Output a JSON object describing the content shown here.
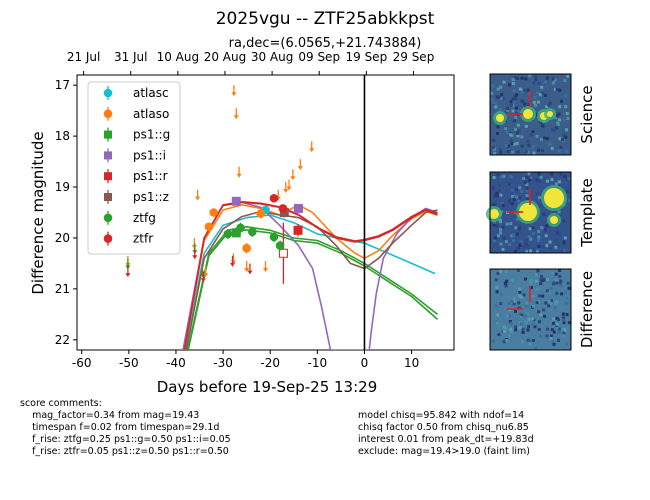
{
  "title": "2025vgu -- ZTF25abkkpst",
  "subtitle": "ra,dec=(6.0565,+21.743884)",
  "chart_data": {
    "type": "scatter",
    "xlabel": "Days before 19-Sep-25 13:29",
    "ylabel": "Difference magnitude",
    "xlim": [
      -61,
      19
    ],
    "ylim": [
      22.2,
      16.8
    ],
    "y_inverted": true,
    "xticks": [
      -60,
      -50,
      -40,
      -30,
      -20,
      -10,
      0,
      10
    ],
    "yticks": [
      17,
      18,
      19,
      20,
      21,
      22
    ],
    "top_ticks": [
      {
        "x": -59.6,
        "label": "21 Jul"
      },
      {
        "x": -49.6,
        "label": "31 Jul"
      },
      {
        "x": -39.6,
        "label": "10 Aug"
      },
      {
        "x": -29.6,
        "label": "20 Aug"
      },
      {
        "x": -19.6,
        "label": "30 Aug"
      },
      {
        "x": -9.6,
        "label": "09 Sep"
      },
      {
        "x": 0.4,
        "label": "19 Sep"
      },
      {
        "x": 10.4,
        "label": "29 Sep"
      }
    ],
    "vline_x": 0,
    "legend_position": "upper-left",
    "series": [
      {
        "name": "atlasc",
        "color": "#17becf",
        "marker": "circle",
        "points": [
          {
            "x": -21,
            "y": 19.45,
            "err": 0.08
          }
        ]
      },
      {
        "name": "atlaso",
        "color": "#ff7f0e",
        "marker": "circle",
        "points": [
          {
            "x": -32,
            "y": 19.5,
            "err": 0.08
          },
          {
            "x": -33,
            "y": 19.78,
            "err": 0.08
          },
          {
            "x": -25,
            "y": 20.2,
            "err": 0.1
          },
          {
            "x": -22,
            "y": 19.52,
            "err": 0.1
          }
        ],
        "limits": [
          {
            "x": -27.7,
            "y": 17.1
          },
          {
            "x": -27.2,
            "y": 17.55
          },
          {
            "x": -26.6,
            "y": 18.7
          },
          {
            "x": -35.4,
            "y": 19.15
          },
          {
            "x": -18.3,
            "y": 19.15
          },
          {
            "x": -16.7,
            "y": 19.0
          },
          {
            "x": -16.0,
            "y": 18.95
          },
          {
            "x": -15.2,
            "y": 18.75
          },
          {
            "x": -13.6,
            "y": 18.55
          },
          {
            "x": -11.2,
            "y": 18.2
          },
          {
            "x": -40.3,
            "y": 19.35
          },
          {
            "x": -36.1,
            "y": 20.1
          },
          {
            "x": -33.7,
            "y": 20.65
          },
          {
            "x": -27.8,
            "y": 20.4
          },
          {
            "x": -25.0,
            "y": 20.55
          },
          {
            "x": -21.0,
            "y": 20.55
          },
          {
            "x": -50.2,
            "y": 20.45
          }
        ]
      },
      {
        "name": "ps1::g",
        "color": "#2ca02c",
        "marker": "square",
        "points": [
          {
            "x": -27.2,
            "y": 19.9,
            "err": 0.08
          }
        ]
      },
      {
        "name": "ps1::i",
        "color": "#9467bd",
        "marker": "square",
        "points": [
          {
            "x": -27.2,
            "y": 19.28,
            "err": 0.08
          },
          {
            "x": -14.0,
            "y": 19.42,
            "err": 0.08
          }
        ]
      },
      {
        "name": "ps1::r",
        "color": "#d62728",
        "marker": "square",
        "points": [
          {
            "x": -14.1,
            "y": 19.85,
            "err": 0.12
          },
          {
            "x": -17.2,
            "y": 20.3,
            "err": 0.6,
            "open": true
          }
        ]
      },
      {
        "name": "ps1::z",
        "color": "#8c564b",
        "marker": "square",
        "points": [
          {
            "x": -17.0,
            "y": 19.5,
            "err": 0.1
          }
        ]
      },
      {
        "name": "ztfg",
        "color": "#2ca02c",
        "marker": "circle",
        "points": [
          {
            "x": -29.0,
            "y": 19.92,
            "err": 0.1
          },
          {
            "x": -26.3,
            "y": 19.8,
            "err": 0.1
          },
          {
            "x": -23.8,
            "y": 19.88,
            "err": 0.1
          },
          {
            "x": -19.2,
            "y": 19.98,
            "err": 0.1
          },
          {
            "x": -17.9,
            "y": 20.15,
            "err": 0.1
          }
        ],
        "limits": [
          {
            "x": -50.2,
            "y": 20.5
          },
          {
            "x": -36.0,
            "y": 20.2
          },
          {
            "x": -34.4,
            "y": 20.65
          }
        ]
      },
      {
        "name": "ztfr",
        "color": "#d62728",
        "marker": "circle",
        "points": [
          {
            "x": -19.2,
            "y": 19.22,
            "err": 0.08
          },
          {
            "x": -17.3,
            "y": 19.42,
            "err": 0.08
          }
        ],
        "limits": [
          {
            "x": -50.2,
            "y": 20.65
          },
          {
            "x": -40.2,
            "y": 19.4
          },
          {
            "x": -36.0,
            "y": 20.3
          },
          {
            "x": -34.2,
            "y": 20.75
          },
          {
            "x": -28.0,
            "y": 20.45
          },
          {
            "x": -24.3,
            "y": 20.6
          }
        ]
      }
    ],
    "models": [
      {
        "color": "#17becf",
        "points": [
          [
            -38,
            22.2
          ],
          [
            -34,
            20.3
          ],
          [
            -30,
            19.75
          ],
          [
            -25,
            19.6
          ],
          [
            -20,
            19.55
          ],
          [
            -15,
            19.7
          ],
          [
            -10,
            19.92
          ],
          [
            -5,
            20.02
          ],
          [
            0,
            20.1
          ],
          [
            5,
            20.3
          ],
          [
            10,
            20.5
          ],
          [
            15,
            20.7
          ]
        ]
      },
      {
        "color": "#ff7f0e",
        "points": [
          [
            -38.2,
            22.2
          ],
          [
            -34,
            20.05
          ],
          [
            -30,
            19.45
          ],
          [
            -26,
            19.35
          ],
          [
            -22,
            19.42
          ],
          [
            -18,
            19.55
          ],
          [
            -14,
            19.35
          ],
          [
            -11,
            19.5
          ],
          [
            -6,
            20.0
          ],
          [
            -2,
            20.3
          ],
          [
            0,
            20.4
          ],
          [
            3,
            20.25
          ],
          [
            6,
            19.95
          ],
          [
            10,
            19.62
          ],
          [
            13,
            19.48
          ],
          [
            15.5,
            19.55
          ]
        ]
      },
      {
        "color": "#2ca02c",
        "points": [
          [
            -37.5,
            22.2
          ],
          [
            -33,
            20.3
          ],
          [
            -29,
            19.85
          ],
          [
            -25,
            19.78
          ],
          [
            -20,
            19.85
          ],
          [
            -15,
            20.0
          ],
          [
            -10,
            20.05
          ],
          [
            -5,
            20.25
          ],
          [
            0,
            20.5
          ],
          [
            5,
            20.8
          ],
          [
            10,
            21.1
          ],
          [
            15.5,
            21.5
          ]
        ]
      },
      {
        "color": "#2ca02c",
        "points": [
          [
            -37.4,
            22.2
          ],
          [
            -33,
            20.35
          ],
          [
            -29,
            19.9
          ],
          [
            -25,
            19.84
          ],
          [
            -20,
            19.9
          ],
          [
            -15,
            20.05
          ],
          [
            -10,
            20.1
          ],
          [
            -5,
            20.3
          ],
          [
            0,
            20.55
          ],
          [
            5,
            20.85
          ],
          [
            10,
            21.15
          ],
          [
            15.5,
            21.6
          ]
        ]
      },
      {
        "color": "#9467bd",
        "points": [
          [
            -38.5,
            22.2
          ],
          [
            -34,
            20.0
          ],
          [
            -30,
            19.35
          ],
          [
            -26,
            19.3
          ],
          [
            -22,
            19.4
          ],
          [
            -18,
            19.75
          ],
          [
            -14,
            20.15
          ],
          [
            -11,
            20.6
          ],
          [
            -9,
            21.4
          ],
          [
            -7.2,
            22.2
          ],
          [
            1,
            22.2
          ],
          [
            1.5,
            21.8
          ],
          [
            2.5,
            21.1
          ],
          [
            4,
            20.4
          ],
          [
            7,
            19.9
          ],
          [
            10,
            19.6
          ],
          [
            13,
            19.42
          ],
          [
            15.5,
            19.5
          ]
        ]
      },
      {
        "color": "#8c564b",
        "points": [
          [
            -37.8,
            22.2
          ],
          [
            -34,
            20.4
          ],
          [
            -30,
            19.82
          ],
          [
            -26,
            19.58
          ],
          [
            -22,
            19.48
          ],
          [
            -18,
            19.55
          ],
          [
            -14,
            19.6
          ],
          [
            -10,
            19.78
          ],
          [
            -6,
            20.15
          ],
          [
            -3,
            20.5
          ],
          [
            0,
            20.6
          ],
          [
            3,
            20.4
          ],
          [
            6,
            20.1
          ],
          [
            10,
            19.75
          ],
          [
            13,
            19.5
          ],
          [
            15.5,
            19.45
          ]
        ]
      },
      {
        "color": "#d62728",
        "points": [
          [
            -38.2,
            22.2
          ],
          [
            -34,
            20.0
          ],
          [
            -30,
            19.36
          ],
          [
            -26,
            19.3
          ],
          [
            -22,
            19.33
          ],
          [
            -18,
            19.4
          ],
          [
            -14,
            19.55
          ],
          [
            -10,
            19.8
          ],
          [
            -6,
            20.0
          ],
          [
            -2,
            20.08
          ],
          [
            0,
            20.05
          ],
          [
            3,
            19.98
          ],
          [
            6,
            19.85
          ],
          [
            10,
            19.6
          ],
          [
            13,
            19.45
          ],
          [
            15.5,
            19.55
          ]
        ]
      },
      {
        "color": "#d62728",
        "points": [
          [
            -38.2,
            22.2
          ],
          [
            -34,
            20.0
          ],
          [
            -30,
            19.35
          ],
          [
            -26,
            19.29
          ],
          [
            -22,
            19.32
          ],
          [
            -18,
            19.39
          ],
          [
            -14,
            19.54
          ],
          [
            -10,
            19.79
          ],
          [
            -6,
            19.98
          ],
          [
            -2,
            20.06
          ],
          [
            0,
            20.03
          ],
          [
            3,
            19.96
          ],
          [
            6,
            19.83
          ],
          [
            10,
            19.58
          ],
          [
            13,
            19.44
          ],
          [
            15.5,
            19.52
          ]
        ]
      }
    ]
  },
  "cutouts": [
    {
      "label": "Science"
    },
    {
      "label": "Template"
    },
    {
      "label": "Difference"
    }
  ],
  "comments_left": "score comments:\n    mag_factor=0.34 from mag=19.43\n    timespan f=0.02 from timespan=29.1d\n    f_rise: ztfg=0.25 ps1::g=0.50 ps1::i=0.05\n    f_rise: ztfr=0.05 ps1::z=0.50 ps1::r=0.50",
  "comments_right": "model chisq=95.842 with ndof=14\nchisq factor 0.50 from chisq_nu6.85\ninterest 0.01 from peak_dt=+19.83d\nexclude: mag=19.4>19.0 (faint lim)"
}
